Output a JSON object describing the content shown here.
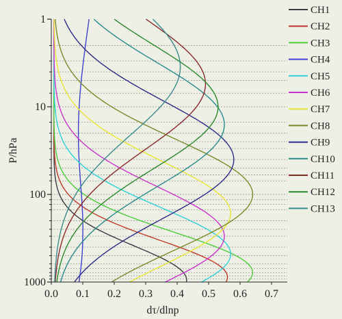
{
  "chart_data": {
    "type": "line",
    "xlabel": "dτ/dlnp",
    "ylabel": "P/hPa",
    "xlim": [
      0,
      0.75
    ],
    "ylim": [
      1000,
      1
    ],
    "y_scale": "log",
    "x_ticks": [
      "0.0",
      "0.1",
      "0.2",
      "0.3",
      "0.4",
      "0.5",
      "0.6",
      "0.7"
    ],
    "y_ticks": [
      {
        "label": "1",
        "value": 1
      },
      {
        "label": "10",
        "value": 10
      },
      {
        "label": "100",
        "value": 100
      },
      {
        "label": "1000",
        "value": 1000
      }
    ],
    "grid_levels": [
      1000,
      925,
      850,
      780,
      700,
      620,
      500,
      400,
      300,
      250,
      200,
      150,
      130,
      115,
      100,
      70,
      60,
      50,
      40,
      30,
      25,
      20,
      15,
      10,
      7,
      5,
      4,
      3,
      2
    ],
    "legend_position": "right",
    "series": [
      {
        "name": "CH1",
        "color": "#3a3a44",
        "peak_value": 0.43,
        "peak_pressure": 950,
        "width": 0.55,
        "floor": 0.008
      },
      {
        "name": "CH2",
        "color": "#c0392b",
        "peak_value": 0.56,
        "peak_pressure": 880,
        "width": 0.6,
        "floor": 0.008
      },
      {
        "name": "CH3",
        "color": "#4dcc3a",
        "peak_value": 0.64,
        "peak_pressure": 780,
        "width": 0.65,
        "floor": 0.008
      },
      {
        "name": "CH4",
        "color": "#3f3fd0",
        "peak_value": 0.1,
        "peak_pressure": 300,
        "width": 1.3,
        "floor": 0.02,
        "start_pressure": 1,
        "start_value": 0.12
      },
      {
        "name": "CH5",
        "color": "#2fd0d8",
        "peak_value": 0.57,
        "peak_pressure": 480,
        "width": 0.75,
        "floor": 0.008
      },
      {
        "name": "CH6",
        "color": "#cc33cc",
        "peak_value": 0.55,
        "peak_pressure": 300,
        "width": 0.8,
        "floor": 0.008
      },
      {
        "name": "CH7",
        "color": "#e6e633",
        "peak_value": 0.57,
        "peak_pressure": 165,
        "width": 0.85,
        "floor": 0.008
      },
      {
        "name": "CH8",
        "color": "#7a8a28",
        "peak_value": 0.64,
        "peak_pressure": 100,
        "width": 0.9,
        "floor": 0.008
      },
      {
        "name": "CH9",
        "color": "#2a2a8a",
        "peak_value": 0.58,
        "peak_pressure": 40,
        "width": 0.95,
        "floor": 0.008
      },
      {
        "name": "CH10",
        "color": "#2a8a8a",
        "peak_value": 0.55,
        "peak_pressure": 16,
        "width": 1.0,
        "floor": 0.008
      },
      {
        "name": "CH11",
        "color": "#8a2a2a",
        "peak_value": 0.49,
        "peak_pressure": 5.5,
        "width": 1.05,
        "floor": 0.008,
        "start_pressure": 1,
        "start_value": 0.15
      },
      {
        "name": "CH12",
        "color": "#2a8a2a",
        "peak_value": 0.53,
        "peak_pressure": 10,
        "width": 1.0,
        "floor": 0.008,
        "start_pressure": 1,
        "start_value": 0.04
      },
      {
        "name": "CH13",
        "color": "#3a8a8a",
        "peak_value": 0.41,
        "peak_pressure": 3.5,
        "width": 1.1,
        "floor": 0.008,
        "start_pressure": 1,
        "start_value": 0.02
      }
    ]
  }
}
